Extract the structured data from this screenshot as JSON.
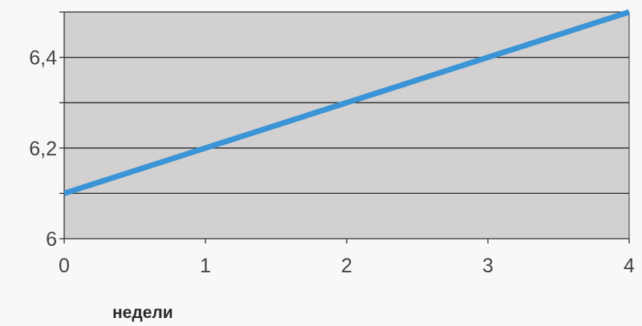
{
  "chart_data": {
    "type": "line",
    "title": "",
    "xlabel": "недели",
    "ylabel": "",
    "xlim": [
      0,
      4
    ],
    "ylim": [
      6,
      6.5
    ],
    "x_ticks": [
      0,
      1,
      2,
      3,
      4
    ],
    "x_tick_labels": [
      "0",
      "1",
      "2",
      "3",
      "4"
    ],
    "y_gridlines": [
      6.1,
      6.2,
      6.3,
      6.4,
      6.5
    ],
    "y_ticks": [
      6,
      6.2,
      6.4
    ],
    "y_tick_labels": [
      "6",
      "6,2",
      "6,4"
    ],
    "grid": true,
    "legend": "none",
    "series": [
      {
        "x": [
          0,
          1,
          2,
          3,
          4
        ],
        "y": [
          6.1,
          6.2,
          6.3,
          6.4,
          6.5
        ],
        "color": "#3a94d6"
      }
    ],
    "colors": {
      "plot_background": "#d2d0d0",
      "gridline": "#2a2a2a",
      "axis": "#333333",
      "page_background": "#f8f8f8"
    }
  }
}
